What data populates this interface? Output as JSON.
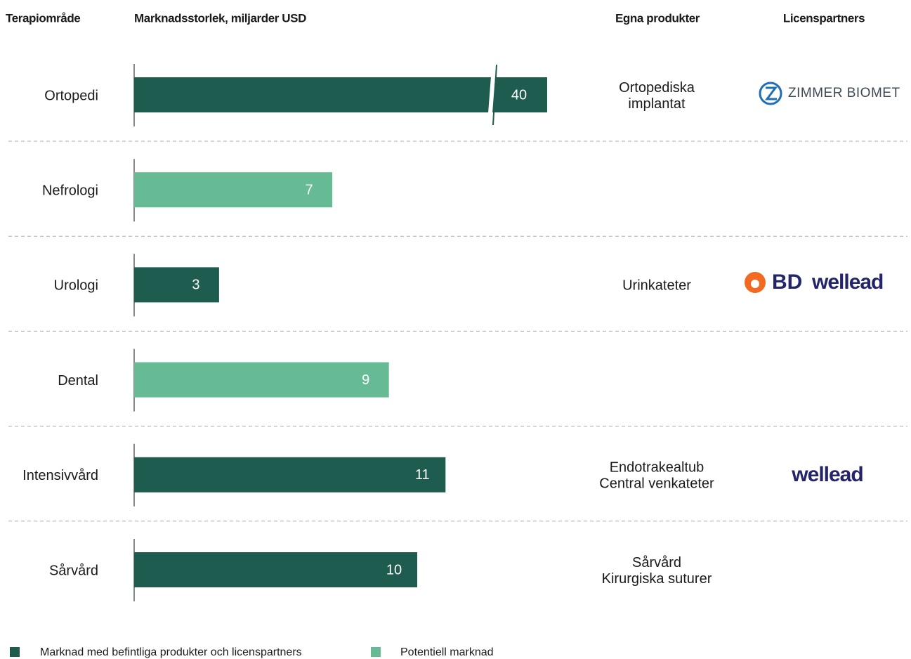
{
  "chart_data": {
    "type": "bar",
    "columns": [
      "Terapiområde",
      "Marknadsstorlek, miljarder USD",
      "Egna produkter",
      "Licenspartners"
    ],
    "categories": [
      "Ortopedi",
      "Nefrologi",
      "Urologi",
      "Dental",
      "Intensivvård",
      "Sårvård"
    ],
    "series": [
      {
        "name": "Marknad med befintliga produkter och licenspartners",
        "color": "#1e5c50",
        "values": [
          40,
          null,
          3,
          null,
          11,
          10
        ]
      },
      {
        "name": "Potentiell marknad",
        "color": "#66bb94",
        "values": [
          null,
          7,
          null,
          9,
          null,
          null
        ]
      }
    ],
    "products": [
      [
        "Ortopediska",
        "implantat"
      ],
      [],
      [
        "Urinkateter"
      ],
      [],
      [
        "Endotrakealtub",
        "Central venkateter"
      ],
      [
        "Sårvård",
        "Kirurgiska suturer"
      ]
    ],
    "partners": [
      [
        "ZIMMER BIOMET"
      ],
      [],
      [
        "BD",
        "wellead"
      ],
      [],
      [
        "wellead"
      ],
      []
    ]
  }
}
